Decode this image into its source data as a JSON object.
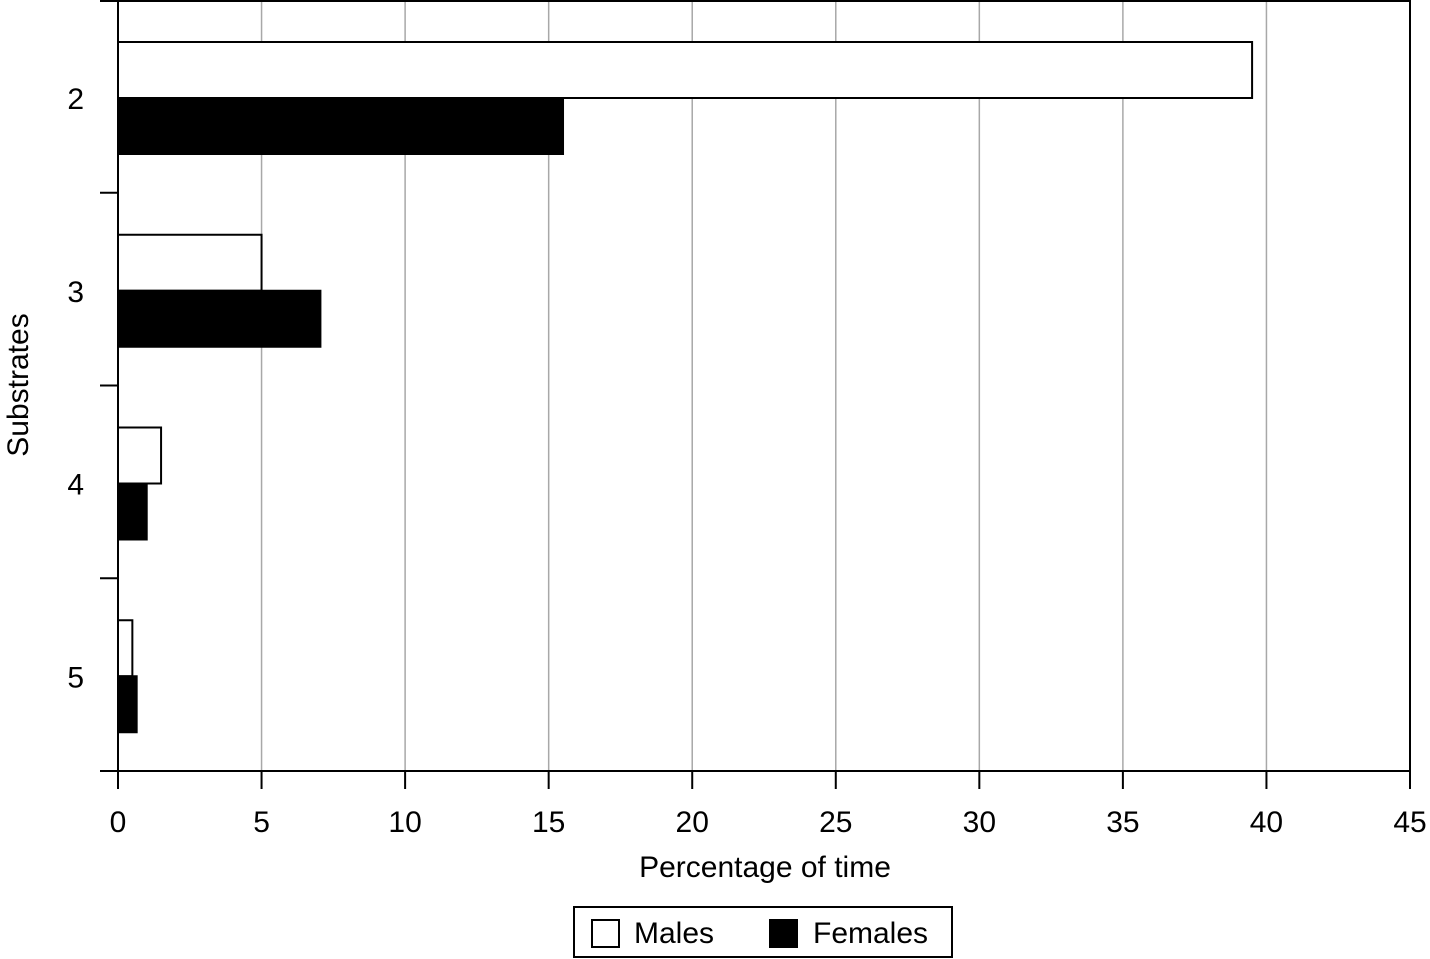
{
  "chart_data": {
    "type": "bar",
    "orientation": "horizontal",
    "categories": [
      "2",
      "3",
      "4",
      "5"
    ],
    "series": [
      {
        "name": "Males",
        "values": [
          39.5,
          5.0,
          1.5,
          0.5
        ],
        "color": "#ffffff"
      },
      {
        "name": "Females",
        "values": [
          15.5,
          7.05,
          1.0,
          0.65
        ],
        "color": "#000000"
      }
    ],
    "xlabel": "Percentage of time",
    "ylabel": "Substrates",
    "xlim": [
      0,
      45
    ],
    "xticks": [
      "0",
      "5",
      "10",
      "15",
      "20",
      "25",
      "30",
      "35",
      "40",
      "45"
    ],
    "grid": "vertical",
    "legend_position": "bottom-center"
  }
}
